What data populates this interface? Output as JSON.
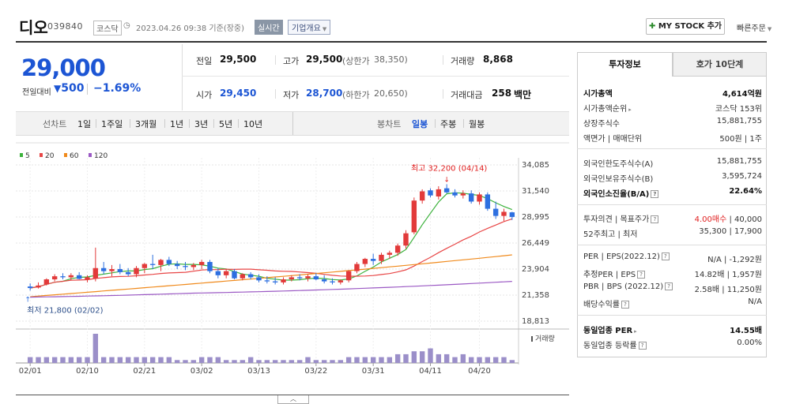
{
  "header": {
    "name": "디오",
    "code": "039840",
    "market": "코스닥",
    "datetime": "2023.04.26 09:38 기준(장중)",
    "live": "실시간",
    "overview": "기업개요",
    "mystock": "MY STOCK 추가",
    "quick_order": "빠른주문"
  },
  "price": {
    "current": "29,000",
    "prev_label": "전일대비",
    "change": "500",
    "change_pct": "−1.69%"
  },
  "quotes": {
    "prev_close": {
      "label": "전일",
      "value": "29,500"
    },
    "high": {
      "label": "고가",
      "value": "29,500",
      "limit_label": "(상한가",
      "limit_value": "38,350)"
    },
    "volume": {
      "label": "거래량",
      "value": "8,868"
    },
    "open": {
      "label": "시가",
      "value": "29,450"
    },
    "low": {
      "label": "저가",
      "value": "28,700",
      "limit_label": "(하한가",
      "limit_value": "20,650)"
    },
    "amount": {
      "label": "거래대금",
      "value": "258",
      "unit": "백만"
    }
  },
  "nav": {
    "line_label": "선차트",
    "line_periods": [
      "1일",
      "1주일",
      "3개월",
      "1년",
      "3년",
      "5년",
      "10년"
    ],
    "candle_label": "봉차트",
    "candle_periods": [
      "일봉",
      "주봉",
      "월봉"
    ],
    "active_candle": "일봉"
  },
  "chart_data": {
    "type": "candlestick",
    "legend": [
      {
        "name": "5",
        "color": "#3cb23c"
      },
      {
        "name": "20",
        "color": "#e84646"
      },
      {
        "name": "60",
        "color": "#f08a1c"
      },
      {
        "name": "120",
        "color": "#9b59c4"
      }
    ],
    "y_ticks": [
      "34,085",
      "31,540",
      "28,995",
      "26,449",
      "23,904",
      "21,358",
      "18,813"
    ],
    "ylim": [
      18813,
      34085
    ],
    "x_labels": [
      "02/01",
      "02/10",
      "02/21",
      "03/02",
      "03/13",
      "03/22",
      "03/31",
      "04/11",
      "04/20"
    ],
    "x_label_index": [
      0,
      7,
      14,
      21,
      28,
      35,
      42,
      49,
      55
    ],
    "high_annotation": "최고 32,200 (04/14)",
    "low_annotation": "최저 21,800 (02/02)",
    "volume_label": "거래량",
    "candles": [
      {
        "o": 22200,
        "h": 22500,
        "l": 21800,
        "c": 22050
      },
      {
        "o": 22100,
        "h": 22600,
        "l": 22000,
        "c": 22300
      },
      {
        "o": 22400,
        "h": 23000,
        "l": 22300,
        "c": 22900
      },
      {
        "o": 22900,
        "h": 23400,
        "l": 22700,
        "c": 23200
      },
      {
        "o": 23200,
        "h": 23500,
        "l": 22900,
        "c": 23100
      },
      {
        "o": 23100,
        "h": 23500,
        "l": 22800,
        "c": 23300
      },
      {
        "o": 23300,
        "h": 23600,
        "l": 22900,
        "c": 22950
      },
      {
        "o": 22900,
        "h": 23300,
        "l": 22600,
        "c": 23100
      },
      {
        "o": 23000,
        "h": 26000,
        "l": 22700,
        "c": 24000
      },
      {
        "o": 24000,
        "h": 24600,
        "l": 23400,
        "c": 23700
      },
      {
        "o": 23700,
        "h": 24300,
        "l": 23200,
        "c": 23900
      },
      {
        "o": 23900,
        "h": 24400,
        "l": 23400,
        "c": 23600
      },
      {
        "o": 23600,
        "h": 24000,
        "l": 23200,
        "c": 23400
      },
      {
        "o": 23400,
        "h": 24200,
        "l": 23100,
        "c": 24000
      },
      {
        "o": 24000,
        "h": 24500,
        "l": 23500,
        "c": 24400
      },
      {
        "o": 24400,
        "h": 25300,
        "l": 23900,
        "c": 24300
      },
      {
        "o": 24300,
        "h": 24900,
        "l": 23700,
        "c": 24800
      },
      {
        "o": 24800,
        "h": 25100,
        "l": 24200,
        "c": 24400
      },
      {
        "o": 24400,
        "h": 24700,
        "l": 23900,
        "c": 24200
      },
      {
        "o": 24200,
        "h": 24600,
        "l": 23800,
        "c": 24100
      },
      {
        "o": 24100,
        "h": 24500,
        "l": 23800,
        "c": 24300
      },
      {
        "o": 24300,
        "h": 24800,
        "l": 23900,
        "c": 24600
      },
      {
        "o": 24600,
        "h": 24800,
        "l": 23500,
        "c": 23700
      },
      {
        "o": 23700,
        "h": 24000,
        "l": 23000,
        "c": 23300
      },
      {
        "o": 23300,
        "h": 23900,
        "l": 23000,
        "c": 23700
      },
      {
        "o": 23700,
        "h": 23900,
        "l": 22900,
        "c": 23000
      },
      {
        "o": 23000,
        "h": 23500,
        "l": 22800,
        "c": 23400
      },
      {
        "o": 23400,
        "h": 23600,
        "l": 22900,
        "c": 23100
      },
      {
        "o": 23100,
        "h": 23400,
        "l": 22600,
        "c": 22800
      },
      {
        "o": 22800,
        "h": 23200,
        "l": 22500,
        "c": 22700
      },
      {
        "o": 22700,
        "h": 23100,
        "l": 22400,
        "c": 22600
      },
      {
        "o": 22600,
        "h": 23100,
        "l": 22400,
        "c": 22900
      },
      {
        "o": 22900,
        "h": 23300,
        "l": 22700,
        "c": 23100
      },
      {
        "o": 23100,
        "h": 23400,
        "l": 22800,
        "c": 23000
      },
      {
        "o": 23000,
        "h": 23400,
        "l": 22700,
        "c": 23200
      },
      {
        "o": 23200,
        "h": 23500,
        "l": 22800,
        "c": 22900
      },
      {
        "o": 22900,
        "h": 23300,
        "l": 22500,
        "c": 22700
      },
      {
        "o": 22700,
        "h": 23000,
        "l": 22400,
        "c": 22600
      },
      {
        "o": 22600,
        "h": 22900,
        "l": 22400,
        "c": 22800
      },
      {
        "o": 22800,
        "h": 23800,
        "l": 22600,
        "c": 23700
      },
      {
        "o": 23700,
        "h": 24600,
        "l": 23500,
        "c": 24400
      },
      {
        "o": 24400,
        "h": 25000,
        "l": 24100,
        "c": 24900
      },
      {
        "o": 24900,
        "h": 25400,
        "l": 24300,
        "c": 24700
      },
      {
        "o": 24700,
        "h": 25500,
        "l": 24400,
        "c": 25300
      },
      {
        "o": 25300,
        "h": 25700,
        "l": 24900,
        "c": 25500
      },
      {
        "o": 25500,
        "h": 26400,
        "l": 25200,
        "c": 26200
      },
      {
        "o": 26200,
        "h": 27700,
        "l": 25900,
        "c": 27400
      },
      {
        "o": 27500,
        "h": 30900,
        "l": 27300,
        "c": 30600
      },
      {
        "o": 30600,
        "h": 31700,
        "l": 30300,
        "c": 31500
      },
      {
        "o": 31600,
        "h": 31800,
        "l": 30900,
        "c": 31100
      },
      {
        "o": 31000,
        "h": 32000,
        "l": 30700,
        "c": 31700
      },
      {
        "o": 31800,
        "h": 32200,
        "l": 31300,
        "c": 31400
      },
      {
        "o": 31400,
        "h": 31700,
        "l": 30900,
        "c": 31100
      },
      {
        "o": 31100,
        "h": 31600,
        "l": 30800,
        "c": 31300
      },
      {
        "o": 31300,
        "h": 31600,
        "l": 30300,
        "c": 30500
      },
      {
        "o": 30500,
        "h": 31400,
        "l": 30200,
        "c": 31200
      },
      {
        "o": 31200,
        "h": 31400,
        "l": 29600,
        "c": 29800
      },
      {
        "o": 29800,
        "h": 30500,
        "l": 28800,
        "c": 29100
      },
      {
        "o": 29100,
        "h": 29800,
        "l": 28600,
        "c": 29500
      },
      {
        "o": 29450,
        "h": 29500,
        "l": 28700,
        "c": 29000
      }
    ],
    "volumes": [
      2,
      2,
      2,
      2,
      2,
      2,
      2,
      2,
      10,
      2,
      2,
      2,
      2,
      2,
      2,
      2,
      2,
      2,
      1,
      1,
      1,
      2,
      2,
      2,
      1,
      1,
      1,
      2,
      1,
      1,
      1,
      1,
      1,
      1,
      2,
      1,
      1,
      1,
      1,
      2,
      2,
      2,
      2,
      2,
      2,
      3,
      3,
      4,
      4,
      5,
      3,
      3,
      2,
      3,
      2,
      2,
      2,
      2,
      2,
      1
    ]
  },
  "side": {
    "tabs": [
      "투자정보",
      "호가 10단계"
    ],
    "rows": [
      {
        "k": "시가총액",
        "v": "4,614억원",
        "bold": true
      },
      {
        "k": "시가총액순위",
        "v": "코스닥 153위",
        "caret": true
      },
      {
        "k": "상장주식수",
        "v": "15,881,755"
      },
      {
        "k": "액면가 | 매매단위",
        "v": "500원 | 1주"
      },
      {
        "k": "외국인한도주식수(A)",
        "v": "15,881,755"
      },
      {
        "k": "외국인보유주식수(B)",
        "v": "3,595,724"
      },
      {
        "k": "외국인소진율(B/A)",
        "v": "22.64%",
        "bold": true,
        "q": true
      },
      {
        "k": "투자의견 | 목표주가",
        "v": "4.00매수",
        "v2": " | 40,000",
        "q": true
      },
      {
        "k": "52주최고 | 최저",
        "v": "35,300 | 17,900"
      },
      {
        "k": "PER | EPS(2022.12)",
        "v": "N/A | -1,292원",
        "q": true
      },
      {
        "k": "추정PER | EPS",
        "v": "14.82배 | 1,957원",
        "q": true
      },
      {
        "k": "PBR | BPS (2022.12)",
        "v": "2.58배 | 11,250원",
        "q": true
      },
      {
        "k": "배당수익률",
        "v": "N/A",
        "q": true
      },
      {
        "k": "동일업종 PER",
        "v": "14.55배",
        "bold": true,
        "caret": true
      },
      {
        "k": "동일업종 등락률",
        "v": "0.00%",
        "q": true
      }
    ]
  }
}
